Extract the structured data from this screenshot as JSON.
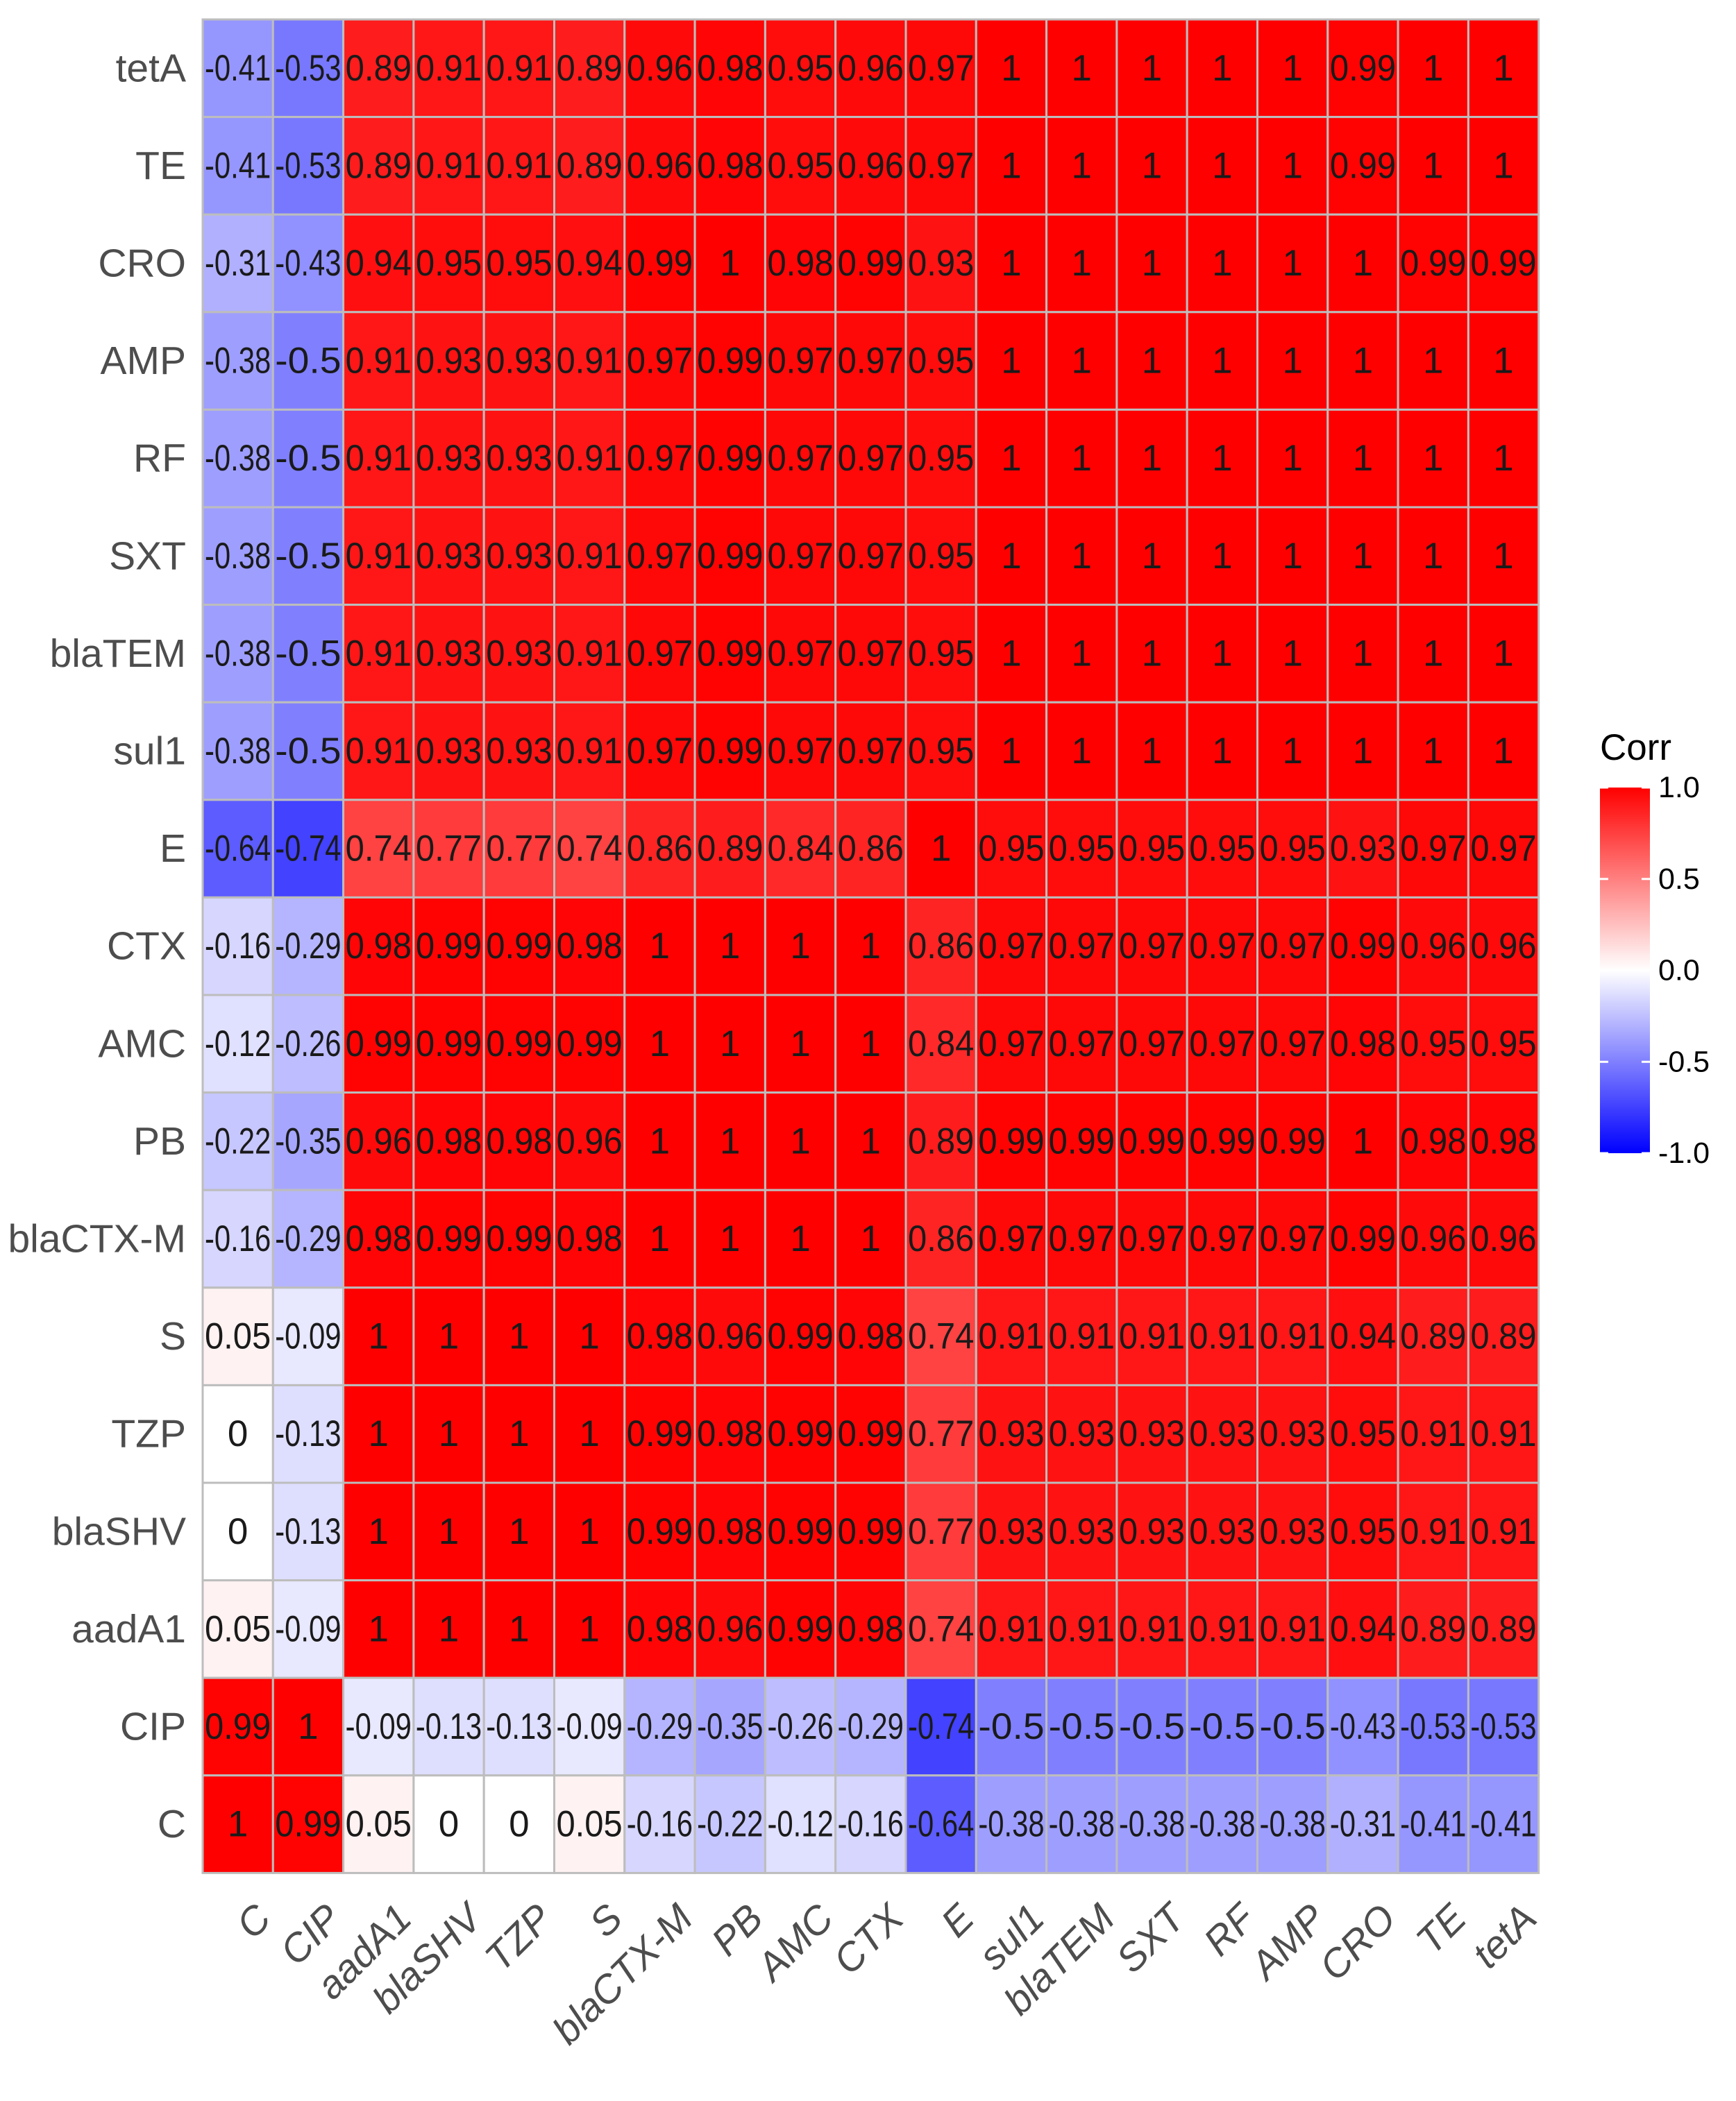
{
  "chart_data": {
    "type": "heatmap",
    "title": "",
    "row_labels": [
      "tetA",
      "TE",
      "CRO",
      "AMP",
      "RF",
      "SXT",
      "blaTEM",
      "sul1",
      "E",
      "CTX",
      "AMC",
      "PB",
      "blaCTX-M",
      "S",
      "TZP",
      "blaSHV",
      "aadA1",
      "CIP",
      "C"
    ],
    "col_labels": [
      "C",
      "CIP",
      "aadA1",
      "blaSHV",
      "TZP",
      "S",
      "blaCTX-M",
      "PB",
      "AMC",
      "CTX",
      "E",
      "sul1",
      "blaTEM",
      "SXT",
      "RF",
      "AMP",
      "CRO",
      "TE",
      "tetA"
    ],
    "values": [
      [
        -0.41,
        -0.53,
        0.89,
        0.91,
        0.91,
        0.89,
        0.96,
        0.98,
        0.95,
        0.96,
        0.97,
        1,
        1,
        1,
        1,
        1,
        0.99,
        1,
        1
      ],
      [
        -0.41,
        -0.53,
        0.89,
        0.91,
        0.91,
        0.89,
        0.96,
        0.98,
        0.95,
        0.96,
        0.97,
        1,
        1,
        1,
        1,
        1,
        0.99,
        1,
        1
      ],
      [
        -0.31,
        -0.43,
        0.94,
        0.95,
        0.95,
        0.94,
        0.99,
        1,
        0.98,
        0.99,
        0.93,
        1,
        1,
        1,
        1,
        1,
        1,
        0.99,
        0.99
      ],
      [
        -0.38,
        -0.5,
        0.91,
        0.93,
        0.93,
        0.91,
        0.97,
        0.99,
        0.97,
        0.97,
        0.95,
        1,
        1,
        1,
        1,
        1,
        1,
        1,
        1
      ],
      [
        -0.38,
        -0.5,
        0.91,
        0.93,
        0.93,
        0.91,
        0.97,
        0.99,
        0.97,
        0.97,
        0.95,
        1,
        1,
        1,
        1,
        1,
        1,
        1,
        1
      ],
      [
        -0.38,
        -0.5,
        0.91,
        0.93,
        0.93,
        0.91,
        0.97,
        0.99,
        0.97,
        0.97,
        0.95,
        1,
        1,
        1,
        1,
        1,
        1,
        1,
        1
      ],
      [
        -0.38,
        -0.5,
        0.91,
        0.93,
        0.93,
        0.91,
        0.97,
        0.99,
        0.97,
        0.97,
        0.95,
        1,
        1,
        1,
        1,
        1,
        1,
        1,
        1
      ],
      [
        -0.38,
        -0.5,
        0.91,
        0.93,
        0.93,
        0.91,
        0.97,
        0.99,
        0.97,
        0.97,
        0.95,
        1,
        1,
        1,
        1,
        1,
        1,
        1,
        1
      ],
      [
        -0.64,
        -0.74,
        0.74,
        0.77,
        0.77,
        0.74,
        0.86,
        0.89,
        0.84,
        0.86,
        1,
        0.95,
        0.95,
        0.95,
        0.95,
        0.95,
        0.93,
        0.97,
        0.97
      ],
      [
        -0.16,
        -0.29,
        0.98,
        0.99,
        0.99,
        0.98,
        1,
        1,
        1,
        1,
        0.86,
        0.97,
        0.97,
        0.97,
        0.97,
        0.97,
        0.99,
        0.96,
        0.96
      ],
      [
        -0.12,
        -0.26,
        0.99,
        0.99,
        0.99,
        0.99,
        1,
        1,
        1,
        1,
        0.84,
        0.97,
        0.97,
        0.97,
        0.97,
        0.97,
        0.98,
        0.95,
        0.95
      ],
      [
        -0.22,
        -0.35,
        0.96,
        0.98,
        0.98,
        0.96,
        1,
        1,
        1,
        1,
        0.89,
        0.99,
        0.99,
        0.99,
        0.99,
        0.99,
        1,
        0.98,
        0.98
      ],
      [
        -0.16,
        -0.29,
        0.98,
        0.99,
        0.99,
        0.98,
        1,
        1,
        1,
        1,
        0.86,
        0.97,
        0.97,
        0.97,
        0.97,
        0.97,
        0.99,
        0.96,
        0.96
      ],
      [
        0.05,
        -0.09,
        1,
        1,
        1,
        1,
        0.98,
        0.96,
        0.99,
        0.98,
        0.74,
        0.91,
        0.91,
        0.91,
        0.91,
        0.91,
        0.94,
        0.89,
        0.89
      ],
      [
        0,
        -0.13,
        1,
        1,
        1,
        1,
        0.99,
        0.98,
        0.99,
        0.99,
        0.77,
        0.93,
        0.93,
        0.93,
        0.93,
        0.93,
        0.95,
        0.91,
        0.91
      ],
      [
        0,
        -0.13,
        1,
        1,
        1,
        1,
        0.99,
        0.98,
        0.99,
        0.99,
        0.77,
        0.93,
        0.93,
        0.93,
        0.93,
        0.93,
        0.95,
        0.91,
        0.91
      ],
      [
        0.05,
        -0.09,
        1,
        1,
        1,
        1,
        0.98,
        0.96,
        0.99,
        0.98,
        0.74,
        0.91,
        0.91,
        0.91,
        0.91,
        0.91,
        0.94,
        0.89,
        0.89
      ],
      [
        0.99,
        1,
        -0.09,
        -0.13,
        -0.13,
        -0.09,
        -0.29,
        -0.35,
        -0.26,
        -0.29,
        -0.74,
        -0.5,
        -0.5,
        -0.5,
        -0.5,
        -0.5,
        -0.43,
        -0.53,
        -0.53
      ],
      [
        1,
        0.99,
        0.05,
        0,
        0,
        0.05,
        -0.16,
        -0.22,
        -0.12,
        -0.16,
        -0.64,
        -0.38,
        -0.38,
        -0.38,
        -0.38,
        -0.38,
        -0.31,
        -0.41,
        -0.41
      ]
    ],
    "color_range": [
      -1,
      1
    ],
    "colors": {
      "low": "#0000FF",
      "mid": "#FFFFFF",
      "high": "#FF0000",
      "grid": "#BDBDBD"
    },
    "legend": {
      "title": "Corr",
      "ticks": [
        1.0,
        0.5,
        0.0,
        -0.5,
        -1.0
      ],
      "tick_labels": [
        "1.0",
        "0.5",
        "0.0",
        "-0.5",
        "-1.0"
      ],
      "position": "right"
    },
    "xlabel": "",
    "ylabel": ""
  }
}
